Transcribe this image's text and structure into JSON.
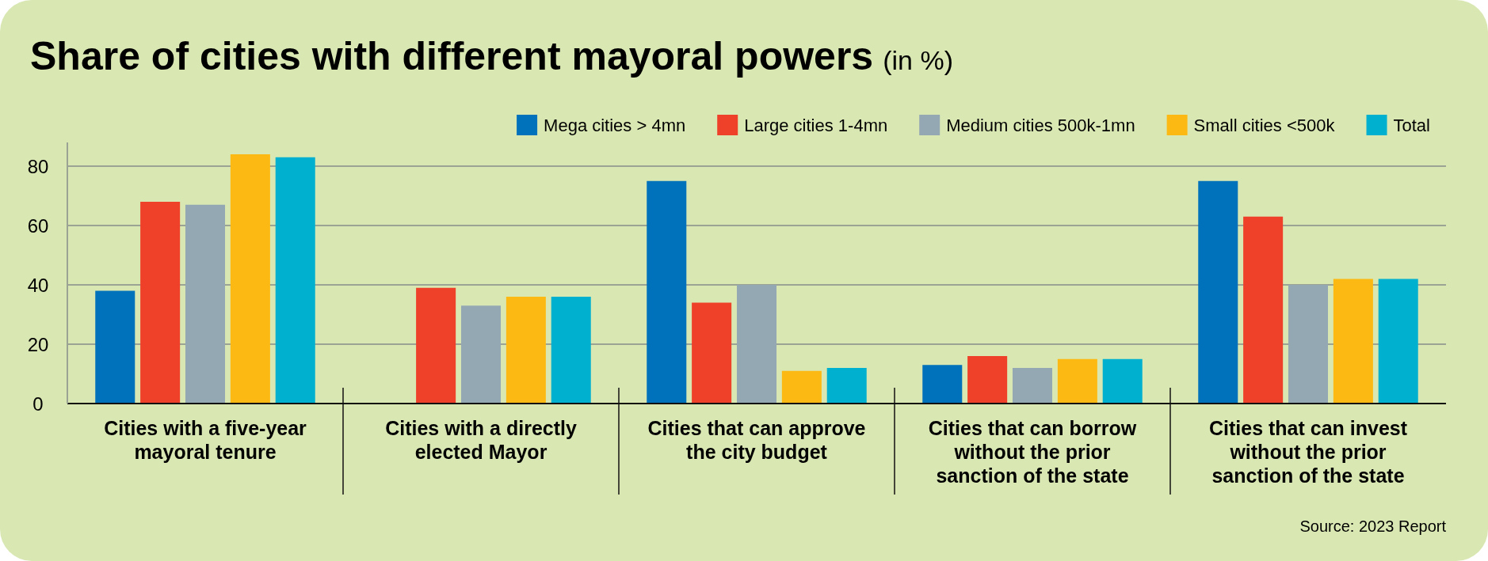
{
  "chart_data": {
    "type": "bar",
    "title": "Share of cities with different mayoral powers",
    "subtitle": "(in %)",
    "categories": [
      "Cities with a five-year mayoral tenure",
      "Cities with a directly elected Mayor",
      "Cities that can approve the city budget",
      "Cities that can borrow without the prior sanction of the state",
      "Cities that can invest without the prior sanction of the state"
    ],
    "series": [
      {
        "name": "Mega cities > 4mn",
        "color": "#0072bc",
        "values": [
          38,
          null,
          75,
          13,
          75
        ]
      },
      {
        "name": "Large cities 1-4mn",
        "color": "#ef4129",
        "values": [
          68,
          39,
          34,
          16,
          63
        ]
      },
      {
        "name": "Medium cities 500k-1mn",
        "color": "#94a8b4",
        "values": [
          67,
          33,
          40,
          12,
          40
        ]
      },
      {
        "name": "Small cities <500k",
        "color": "#fdb913",
        "values": [
          84,
          36,
          11,
          15,
          42
        ]
      },
      {
        "name": "Total",
        "color": "#00b0cf",
        "values": [
          83,
          36,
          12,
          15,
          42
        ]
      }
    ],
    "ylim": [
      0,
      88
    ],
    "yticks": [
      0,
      20,
      40,
      60,
      80
    ],
    "grid": "y",
    "legend": "top right",
    "annotations": [
      "Source: 2023 Report"
    ]
  }
}
